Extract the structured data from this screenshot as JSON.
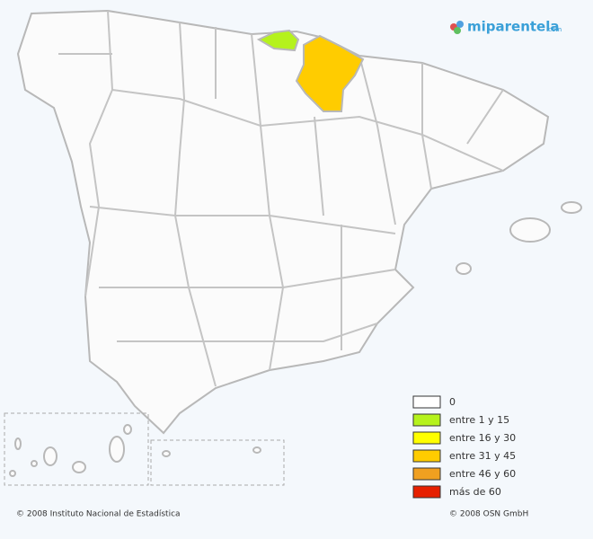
{
  "logo": {
    "name": "miparentela",
    "suffix": ".com"
  },
  "legend": {
    "items": [
      {
        "label": "0",
        "color": "#ffffff"
      },
      {
        "label": "entre 1 y 15",
        "color": "#b5f21c"
      },
      {
        "label": "entre 16 y 30",
        "color": "#ffff00"
      },
      {
        "label": "entre 31 y 45",
        "color": "#ffcc00"
      },
      {
        "label": "entre 46 y 60",
        "color": "#f0a020"
      },
      {
        "label": "más de 60",
        "color": "#e62000"
      }
    ]
  },
  "footer": {
    "left": "© 2008 Instituto Nacional de Estadística",
    "right": "© 2008 OSN GmbH"
  }
}
